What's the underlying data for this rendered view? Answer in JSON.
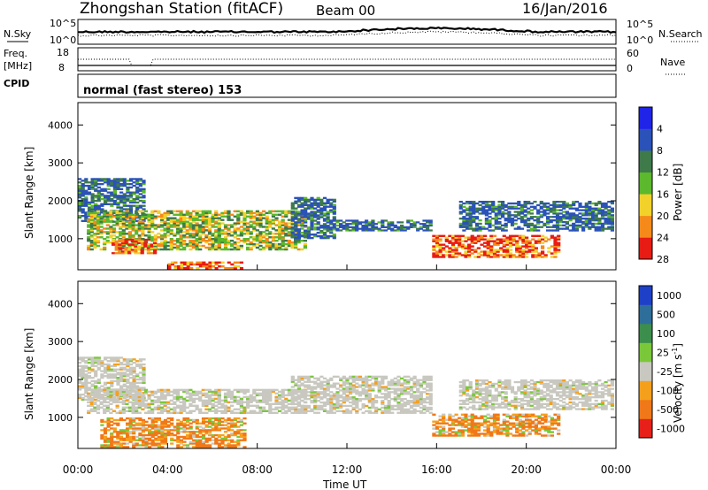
{
  "header": {
    "station": "Zhongshan Station (fitACF)",
    "beam": "Beam 00",
    "date": "16/Jan/2016"
  },
  "strips": {
    "nsky_label": "N.Sky",
    "nsky_ticks": [
      "10^5",
      "10^0"
    ],
    "nsky_right_ticks": [
      "10^5",
      "10^0"
    ],
    "nsearch_label": "N.Search",
    "freq_label_1": "Freq.",
    "freq_label_2": "[MHz]",
    "freq_ticks": [
      "18",
      "8"
    ],
    "nave_ticks": [
      "60",
      "0"
    ],
    "nave_label": "Nave",
    "cpid_label": "CPID",
    "cpid_text": "normal (fast stereo) 153"
  },
  "chart_data": [
    {
      "type": "heatmap",
      "name": "power",
      "ylabel": "Slant Range [km]",
      "y_ticks": [
        "1000",
        "2000",
        "3000",
        "4000"
      ],
      "ylim": [
        180,
        4590
      ],
      "x_ticks": [
        "00:00",
        "04:00",
        "08:00",
        "12:00",
        "16:00",
        "20:00",
        "00:00"
      ],
      "colorbar": {
        "label": "Power [dB]",
        "ticks": [
          "4",
          "8",
          "12",
          "16",
          "20",
          "24",
          "28"
        ],
        "colors": [
          "#1f24e8",
          "#2a52b8",
          "#3e7a4a",
          "#5cb82c",
          "#f2d22a",
          "#f58a1a",
          "#e81c14"
        ]
      },
      "echo_regions": [
        {
          "t0": 0.0,
          "t1": 3.0,
          "r0": 1450,
          "r1": 2600,
          "level": "low"
        },
        {
          "t0": 0.4,
          "t1": 10.2,
          "r0": 700,
          "r1": 1750,
          "level": "mid"
        },
        {
          "t0": 1.5,
          "t1": 3.5,
          "r0": 600,
          "r1": 1000,
          "level": "high"
        },
        {
          "t0": 4.0,
          "t1": 7.5,
          "r0": 200,
          "r1": 400,
          "level": "high"
        },
        {
          "t0": 9.5,
          "t1": 11.5,
          "r0": 1000,
          "r1": 2100,
          "level": "low"
        },
        {
          "t0": 11.5,
          "t1": 15.8,
          "r0": 1200,
          "r1": 1500,
          "level": "low"
        },
        {
          "t0": 15.8,
          "t1": 21.5,
          "r0": 500,
          "r1": 1100,
          "level": "high"
        },
        {
          "t0": 17.0,
          "t1": 23.9,
          "r0": 1200,
          "r1": 2000,
          "level": "low"
        }
      ]
    },
    {
      "type": "heatmap",
      "name": "velocity",
      "ylabel": "Slant Range [km]",
      "y_ticks": [
        "1000",
        "2000",
        "3000",
        "4000"
      ],
      "ylim": [
        180,
        4590
      ],
      "x_ticks": [
        "00:00",
        "04:00",
        "08:00",
        "12:00",
        "16:00",
        "20:00",
        "00:00"
      ],
      "xlabel": "Time UT",
      "colorbar": {
        "label": "Velocity [m s",
        "label_sup": "-1",
        "label_end": "]",
        "ticks": [
          "1000",
          "500",
          "100",
          "25",
          "-25",
          "-100",
          "-500",
          "-1000"
        ],
        "colors": [
          "#1e40c8",
          "#2e6e9a",
          "#3c8e4c",
          "#7ac83a",
          "#c8c8c0",
          "#f5a01c",
          "#f07818",
          "#e8201a"
        ]
      },
      "echo_regions": [
        {
          "t0": 0.0,
          "t1": 3.0,
          "r0": 1450,
          "r1": 2600,
          "level": "near-zero"
        },
        {
          "t0": 0.4,
          "t1": 10.2,
          "r0": 1100,
          "r1": 1750,
          "level": "near-zero"
        },
        {
          "t0": 1.0,
          "t1": 7.5,
          "r0": 200,
          "r1": 1000,
          "level": "negative"
        },
        {
          "t0": 9.5,
          "t1": 15.8,
          "r0": 1100,
          "r1": 2100,
          "level": "near-zero"
        },
        {
          "t0": 15.8,
          "t1": 21.5,
          "r0": 500,
          "r1": 1100,
          "level": "negative"
        },
        {
          "t0": 17.0,
          "t1": 23.9,
          "r0": 1200,
          "r1": 2000,
          "level": "near-zero"
        }
      ]
    }
  ]
}
